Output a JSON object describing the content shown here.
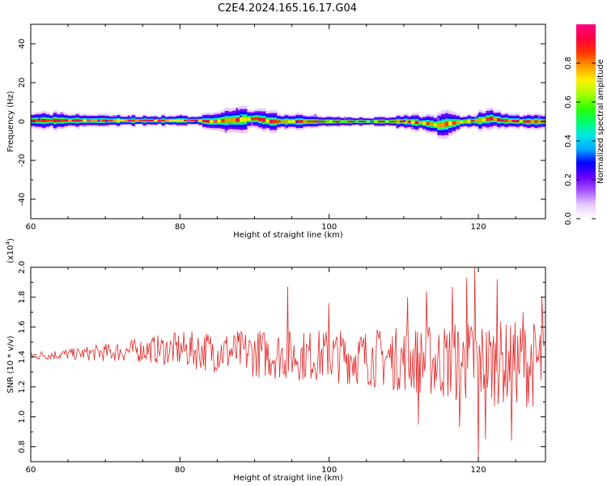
{
  "title": "C2E4.2024.165.16.17.G04",
  "colors": {
    "snr_line": "#e02a2a",
    "axis": "#000000",
    "colormap": [
      "#ffffff",
      "#e6ccff",
      "#a855ff",
      "#6a00ff",
      "#0000ff",
      "#00aaff",
      "#00e6e6",
      "#00ff66",
      "#33ff00",
      "#aaff00",
      "#ffee00",
      "#ff9900",
      "#ff3300",
      "#ff0044",
      "#ff0088"
    ]
  },
  "chart_data": [
    {
      "type": "heatmap",
      "title": "",
      "xlabel": "Height of straight line (km)",
      "ylabel": "Frequency (Hz)",
      "xlim": [
        60,
        129
      ],
      "ylim": [
        -50,
        50
      ],
      "xticks": [
        60,
        80,
        100,
        120
      ],
      "yticks": [
        -40,
        -20,
        0,
        20,
        40
      ],
      "band_center_hz": [
        [
          60,
          0.5
        ],
        [
          82,
          0.5
        ],
        [
          84,
          0
        ],
        [
          88,
          1
        ],
        [
          90,
          1.5
        ],
        [
          92,
          0
        ],
        [
          96,
          0
        ],
        [
          100,
          0
        ],
        [
          110,
          0
        ],
        [
          113,
          -1
        ],
        [
          114.5,
          -2
        ],
        [
          116,
          -1
        ],
        [
          118,
          0
        ],
        [
          120,
          0.5
        ],
        [
          121.5,
          1.5
        ],
        [
          123,
          0.5
        ],
        [
          126,
          0
        ],
        [
          129,
          0
        ]
      ],
      "band_halfwidth_hz": [
        [
          60,
          3
        ],
        [
          68,
          2
        ],
        [
          82,
          1.5
        ],
        [
          86,
          3.5
        ],
        [
          90,
          3.5
        ],
        [
          94,
          2.5
        ],
        [
          100,
          1.5
        ],
        [
          106,
          1.5
        ],
        [
          112,
          2.5
        ],
        [
          115,
          4
        ],
        [
          118,
          2
        ],
        [
          121,
          3
        ],
        [
          124,
          2
        ],
        [
          129,
          2.5
        ]
      ],
      "colorbar": {
        "label": "Normalized spectral amplitude",
        "range": [
          0,
          1
        ],
        "ticks": [
          "0.0",
          "0.2",
          "0.4",
          "0.6",
          "0.8"
        ]
      }
    },
    {
      "type": "line",
      "title": "",
      "xlabel": "Height of straight line (km)",
      "ylabel": "SNR (10 * v/v)",
      "y_multiplier_label": "(x10",
      "y_multiplier_exponent": "4",
      "y_multiplier_close": ")",
      "xlim": [
        60,
        129
      ],
      "ylim": [
        0.7,
        2.0
      ],
      "xticks": [
        60,
        80,
        100,
        120
      ],
      "yticks": [
        "0.8",
        "1.0",
        "1.2",
        "1.4",
        "1.6",
        "1.8",
        "2.0"
      ],
      "envelope": [
        [
          60,
          1.41,
          0.03
        ],
        [
          66,
          1.42,
          0.04
        ],
        [
          70,
          1.43,
          0.06
        ],
        [
          76,
          1.45,
          0.09
        ],
        [
          80,
          1.45,
          0.12
        ],
        [
          84,
          1.44,
          0.14
        ],
        [
          88,
          1.43,
          0.15
        ],
        [
          92,
          1.42,
          0.17
        ],
        [
          96,
          1.41,
          0.17
        ],
        [
          100,
          1.41,
          0.18
        ],
        [
          104,
          1.4,
          0.19
        ],
        [
          108,
          1.39,
          0.21
        ],
        [
          112,
          1.38,
          0.23
        ],
        [
          116,
          1.37,
          0.27
        ],
        [
          120,
          1.36,
          0.3
        ],
        [
          124,
          1.36,
          0.28
        ],
        [
          129,
          1.35,
          0.3
        ]
      ],
      "spikes": [
        [
          94.5,
          1.87
        ],
        [
          119.5,
          2.0
        ],
        [
          120,
          0.72
        ],
        [
          118.5,
          1.93
        ],
        [
          122.5,
          1.92
        ],
        [
          110.5,
          1.8
        ],
        [
          113,
          1.84
        ],
        [
          116.5,
          1.87
        ],
        [
          124.5,
          0.84
        ],
        [
          126,
          1.7
        ],
        [
          128.5,
          1.8
        ],
        [
          121,
          0.85
        ],
        [
          117.5,
          0.93
        ],
        [
          112,
          0.95
        ],
        [
          100,
          1.76
        ]
      ]
    }
  ]
}
